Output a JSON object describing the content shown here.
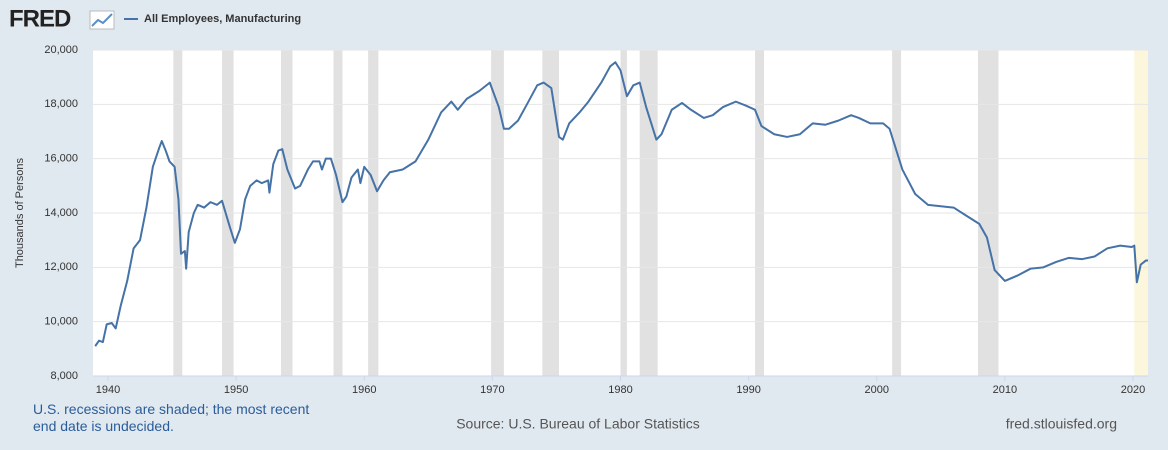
{
  "logo": "FRED",
  "chart_data": {
    "type": "line",
    "legend_label": "All Employees, Manufacturing",
    "ylabel": "Thousands of Persons",
    "note": "U.S. recessions are shaded; the most recent end date is undecided.",
    "source": "Source: U.S. Bureau of Labor Statistics",
    "site": "fred.stlouisfed.org",
    "xlim": [
      1938.83,
      2021.17
    ],
    "ylim": [
      8000,
      20000
    ],
    "xticks": [
      1940,
      1950,
      1960,
      1970,
      1980,
      1990,
      2000,
      2010,
      2020
    ],
    "yticks": [
      {
        "value": 8000,
        "label": "8,000"
      },
      {
        "value": 10000,
        "label": "10,000"
      },
      {
        "value": 12000,
        "label": "12,000"
      },
      {
        "value": 14000,
        "label": "14,000"
      },
      {
        "value": 16000,
        "label": "16,000"
      },
      {
        "value": 18000,
        "label": "18,000"
      },
      {
        "value": 20000,
        "label": "20,000"
      }
    ],
    "grid": true,
    "recession_color": "#e1e1e1",
    "recent_recession_color": "#fbf6dc",
    "recessions": [
      [
        1945.1,
        1945.8
      ],
      [
        1948.9,
        1949.8
      ],
      [
        1953.5,
        1954.4
      ],
      [
        1957.6,
        1958.3
      ],
      [
        1960.3,
        1961.1
      ],
      [
        1969.9,
        1970.9
      ],
      [
        1973.9,
        1975.2
      ],
      [
        1980.0,
        1980.5
      ],
      [
        1981.5,
        1982.9
      ],
      [
        1990.5,
        1991.2
      ],
      [
        2001.2,
        2001.9
      ],
      [
        2007.9,
        2009.5
      ],
      [
        2020.1,
        2021.17
      ]
    ],
    "x": [
      1939.0,
      1939.3,
      1939.6,
      1939.9,
      1940.3,
      1940.6,
      1941.0,
      1941.5,
      1942.0,
      1942.5,
      1943.0,
      1943.5,
      1944.0,
      1944.2,
      1944.5,
      1944.8,
      1945.2,
      1945.5,
      1945.7,
      1946.0,
      1946.1,
      1946.3,
      1946.7,
      1947.0,
      1947.5,
      1948.0,
      1948.5,
      1948.9,
      1949.5,
      1949.9,
      1950.3,
      1950.7,
      1951.1,
      1951.6,
      1952.0,
      1952.5,
      1952.6,
      1952.9,
      1953.3,
      1953.6,
      1954.0,
      1954.6,
      1955.0,
      1955.6,
      1956.0,
      1956.5,
      1956.7,
      1957.0,
      1957.4,
      1957.8,
      1958.3,
      1958.6,
      1959.0,
      1959.5,
      1959.7,
      1960.0,
      1960.5,
      1961.0,
      1961.5,
      1962.0,
      1963.0,
      1964.0,
      1965.0,
      1966.0,
      1966.8,
      1967.3,
      1968.0,
      1969.0,
      1969.8,
      1970.5,
      1970.9,
      1971.3,
      1972.0,
      1972.7,
      1973.5,
      1974.0,
      1974.6,
      1975.2,
      1975.5,
      1976.0,
      1976.8,
      1977.5,
      1978.5,
      1979.2,
      1979.6,
      1980.0,
      1980.5,
      1981.0,
      1981.5,
      1982.0,
      1982.8,
      1983.2,
      1984.0,
      1984.8,
      1985.5,
      1986.5,
      1987.2,
      1988.0,
      1989.0,
      1989.8,
      1990.5,
      1991.0,
      1992.0,
      1993.0,
      1994.0,
      1995.0,
      1996.0,
      1997.0,
      1998.0,
      1998.6,
      1999.5,
      2000.5,
      2001.0,
      2002.0,
      2003.0,
      2004.0,
      2005.0,
      2006.0,
      2007.0,
      2008.0,
      2008.6,
      2009.2,
      2010.0,
      2011.0,
      2012.0,
      2013.0,
      2014.0,
      2015.0,
      2016.0,
      2017.0,
      2018.0,
      2019.0,
      2019.9,
      2020.1,
      2020.3,
      2020.6,
      2021.0,
      2021.17
    ],
    "series": [
      {
        "name": "All Employees, Manufacturing",
        "color": "#4572a7",
        "values": [
          9100,
          9300,
          9250,
          9900,
          9950,
          9750,
          10600,
          11500,
          12700,
          13000,
          14200,
          15700,
          16400,
          16650,
          16300,
          15900,
          15700,
          14500,
          12500,
          12600,
          11950,
          13300,
          14000,
          14300,
          14200,
          14400,
          14300,
          14450,
          13500,
          12900,
          13400,
          14500,
          15000,
          15200,
          15100,
          15200,
          14750,
          15800,
          16300,
          16350,
          15600,
          14900,
          15000,
          15600,
          15900,
          15900,
          15600,
          16000,
          16000,
          15400,
          14400,
          14600,
          15300,
          15600,
          15100,
          15700,
          15400,
          14800,
          15200,
          15500,
          15600,
          15900,
          16700,
          17700,
          18100,
          17800,
          18200,
          18500,
          18800,
          17900,
          17100,
          17100,
          17400,
          18000,
          18700,
          18800,
          18600,
          16800,
          16700,
          17300,
          17700,
          18100,
          18800,
          19400,
          19550,
          19250,
          18300,
          18700,
          18800,
          17900,
          16700,
          16900,
          17800,
          18050,
          17800,
          17500,
          17600,
          17900,
          18100,
          17950,
          17800,
          17200,
          16900,
          16800,
          16900,
          17300,
          17250,
          17400,
          17600,
          17500,
          17300,
          17300,
          17100,
          15600,
          14700,
          14300,
          14250,
          14200,
          13900,
          13600,
          13100,
          11900,
          11500,
          11700,
          11950,
          12000,
          12200,
          12350,
          12300,
          12400,
          12700,
          12800,
          12750,
          12800,
          11450,
          12100,
          12250,
          12250
        ]
      }
    ]
  }
}
